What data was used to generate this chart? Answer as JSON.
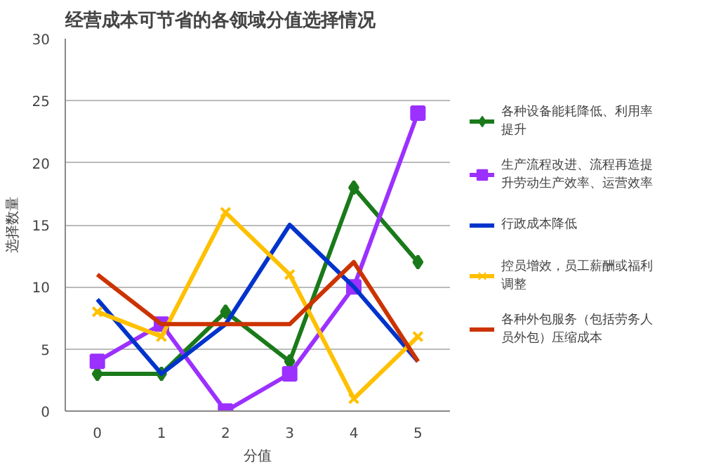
{
  "chart_data": {
    "type": "line",
    "title": "经营成本可节省的各领域分值选择情况",
    "xlabel": "分值",
    "ylabel": "选择数量",
    "categories": [
      "0",
      "1",
      "2",
      "3",
      "4",
      "5"
    ],
    "ylim": [
      0,
      30
    ],
    "yticks": [
      0,
      5,
      10,
      15,
      20,
      25,
      30
    ],
    "grid": "y",
    "legend": "right",
    "series": [
      {
        "name": "各种设备能耗降低、利用率提升",
        "color": "#1a7a1a",
        "marker": "diamond",
        "values": [
          3,
          3,
          8,
          4,
          18,
          12
        ]
      },
      {
        "name": "生产流程改进、流程再造提升劳动生产效率、运营效率",
        "color": "#9b30ff",
        "marker": "square",
        "values": [
          4,
          7,
          0,
          3,
          10,
          24
        ]
      },
      {
        "name": "行政成本降低",
        "color": "#0033cc",
        "marker": "none",
        "values": [
          9,
          3,
          7,
          15,
          10,
          4
        ]
      },
      {
        "name": "控员增效，员工薪酬或福利调整",
        "color": "#ffc000",
        "marker": "cross",
        "values": [
          8,
          6,
          16,
          11,
          1,
          6
        ]
      },
      {
        "name": "各种外包服务（包括劳务人员外包）压缩成本",
        "color": "#cc3300",
        "marker": "none",
        "values": [
          11,
          7,
          7,
          7,
          12,
          4
        ]
      }
    ]
  }
}
